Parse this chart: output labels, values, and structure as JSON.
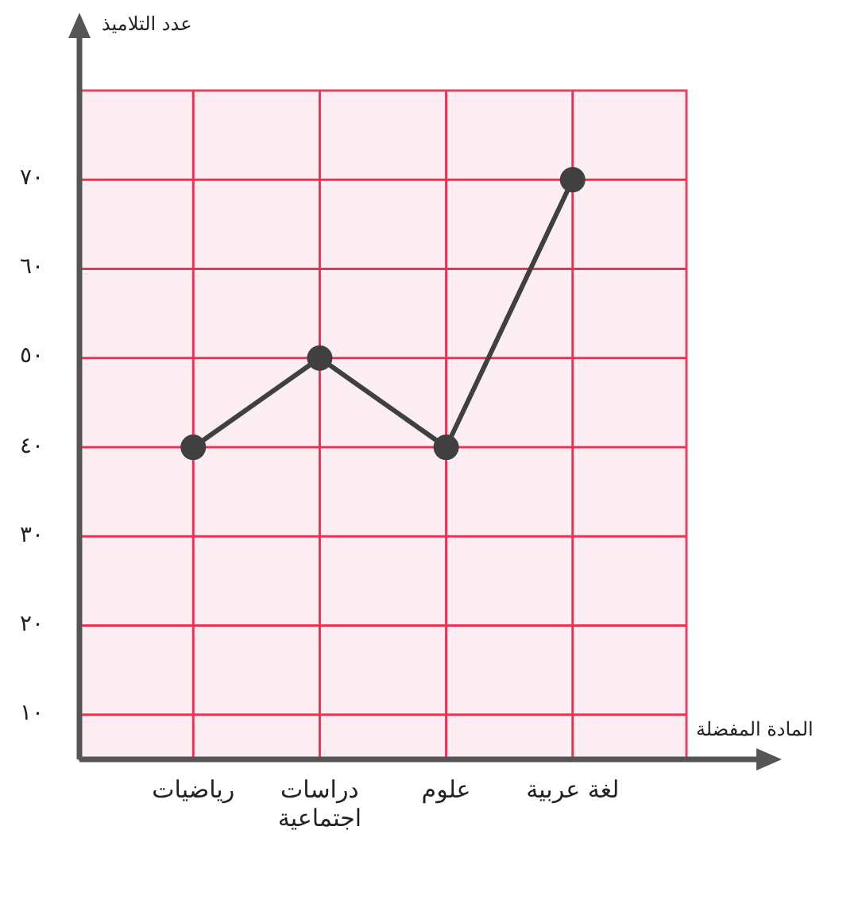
{
  "chart_data": {
    "type": "line",
    "xlabel": "المادة المفضلة",
    "ylabel": "عدد التلاميذ",
    "categories": [
      "رياضيات",
      "دراسات اجتماعية",
      "علوم",
      "لغة عربية"
    ],
    "series": [
      {
        "color": "#404040",
        "values": [
          40,
          50,
          40,
          70
        ]
      }
    ],
    "ylim": [
      5,
      80
    ],
    "yticks": [
      {
        "value": 10,
        "label": "١٠"
      },
      {
        "value": 20,
        "label": "٢٠"
      },
      {
        "value": 30,
        "label": "٣٠"
      },
      {
        "value": 40,
        "label": "٤٠"
      },
      {
        "value": 50,
        "label": "٥٠"
      },
      {
        "value": 60,
        "label": "٦٠"
      },
      {
        "value": 70,
        "label": "٧٠"
      }
    ],
    "grid": true,
    "marker": "circle",
    "line_style": "solid"
  }
}
